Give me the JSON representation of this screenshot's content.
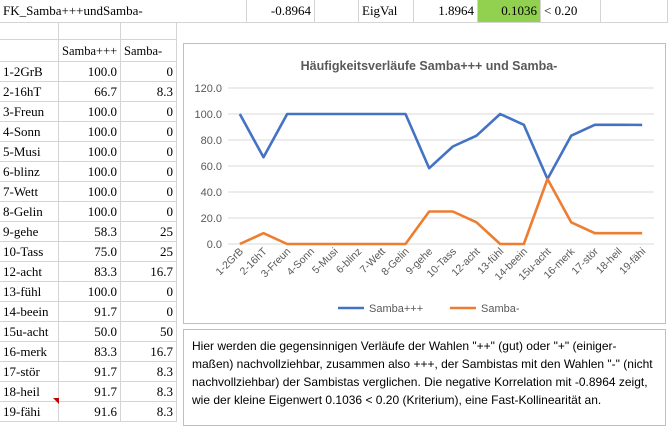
{
  "top_row": {
    "label": "FK_Samba+++undSamba-",
    "correlation": "-0.8964",
    "eig_label": "EigVal",
    "eig_value": "1.8964",
    "small_eig": "0.1036",
    "criterion": "< 0.20"
  },
  "table": {
    "headers": [
      "Samba+++",
      "Samba-"
    ],
    "rows": [
      {
        "label": "1-2GrB",
        "a": "100.0",
        "b": "0"
      },
      {
        "label": "2-16hT",
        "a": "66.7",
        "b": "8.3"
      },
      {
        "label": "3-Freun",
        "a": "100.0",
        "b": "0"
      },
      {
        "label": "4-Sonn",
        "a": "100.0",
        "b": "0"
      },
      {
        "label": "5-Musi",
        "a": "100.0",
        "b": "0"
      },
      {
        "label": "6-blinz",
        "a": "100.0",
        "b": "0"
      },
      {
        "label": "7-Wett",
        "a": "100.0",
        "b": "0"
      },
      {
        "label": "8-Gelin",
        "a": "100.0",
        "b": "0"
      },
      {
        "label": "9-gehe",
        "a": "58.3",
        "b": "25"
      },
      {
        "label": "10-Tass",
        "a": "75.0",
        "b": "25"
      },
      {
        "label": "12-acht",
        "a": "83.3",
        "b": "16.7"
      },
      {
        "label": "13-fühl",
        "a": "100.0",
        "b": "0"
      },
      {
        "label": "14-beein",
        "a": "91.7",
        "b": "0"
      },
      {
        "label": "15u-acht",
        "a": "50.0",
        "b": "50"
      },
      {
        "label": "16-merk",
        "a": "83.3",
        "b": "16.7"
      },
      {
        "label": "17-stör",
        "a": "91.7",
        "b": "8.3"
      },
      {
        "label": "18-heil",
        "a": "91.7",
        "b": "8.3"
      },
      {
        "label": "19-fähi",
        "a": "91.6",
        "b": "8.3"
      }
    ]
  },
  "chart_data": {
    "type": "line",
    "title": "Häufigkeitsverläufe Samba+++ und Samba-",
    "categories": [
      "1-2GrB",
      "2-16hT",
      "3-Freun",
      "4-Sonn",
      "5-Musi",
      "6-blinz",
      "7-Wett",
      "8-Gelin",
      "9-gehe",
      "10-Tass",
      "12-acht",
      "13-fühl",
      "14-beein",
      "15u-acht",
      "16-merk",
      "17-stör",
      "18-heil",
      "19-fähi"
    ],
    "yticks": [
      "0.0",
      "20.0",
      "40.0",
      "60.0",
      "80.0",
      "100.0",
      "120.0"
    ],
    "ylim": [
      0,
      120
    ],
    "legend_position": "bottom",
    "series": [
      {
        "name": "Samba+++",
        "color": "#4472c4",
        "values": [
          100,
          66.7,
          100,
          100,
          100,
          100,
          100,
          100,
          58.3,
          75,
          83.3,
          100,
          91.7,
          50,
          83.3,
          91.7,
          91.7,
          91.6
        ]
      },
      {
        "name": "Samba-",
        "color": "#ed7d31",
        "values": [
          0,
          8.3,
          0,
          0,
          0,
          0,
          0,
          0,
          25,
          25,
          16.7,
          0,
          0,
          50,
          16.7,
          8.3,
          8.3,
          8.3
        ]
      }
    ]
  },
  "note": {
    "text": "Hier werden die gegensinnigen Verläufe der Wahlen \"++\" (gut) oder \"+\" (einiger-maßen) nachvollziehbar, zusammen also +++, der Sambistas mit den Wahlen \"-\" (nicht nachvollziehbar) der Sambistas verglichen. Die negative Korrelation mit -0.8964 zeigt, wie der kleine Eigenwert 0.1036 < 0.20 (Kriterium), eine Fast-Kollinearität an."
  }
}
